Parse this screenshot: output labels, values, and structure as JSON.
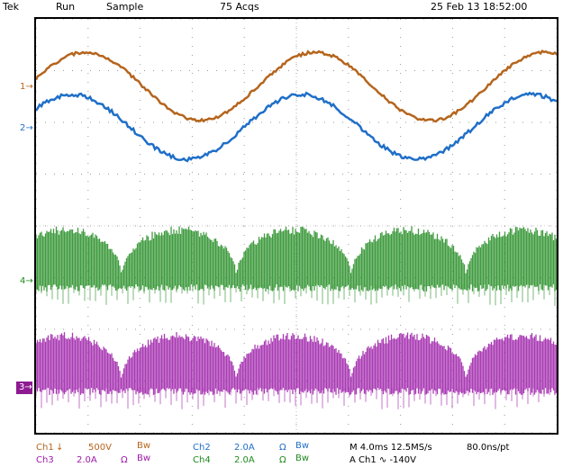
{
  "topbar": {
    "brand": "Tek",
    "run_state": "Run",
    "mode": "Sample",
    "acqs": "75 Acqs",
    "datetime": "25 Feb 13 18:52:00"
  },
  "markers": {
    "ch1": "1",
    "ch2": "2",
    "ch4": "4",
    "ch3": "3"
  },
  "readout": {
    "ch1_label": "Ch1",
    "ch1_scale": "500V",
    "ch1_bw": "Bw",
    "ch2_label": "Ch2",
    "ch2_scale": "2.0A",
    "ch2_ohm": "Ω",
    "ch2_bw": "Bw",
    "ch3_label": "Ch3",
    "ch3_scale": "2.0A",
    "ch3_ohm": "Ω",
    "ch3_bw": "Bw",
    "ch4_label": "Ch4",
    "ch4_scale": "2.0A",
    "ch4_ohm": "Ω",
    "ch4_bw": "Bw",
    "timebase": "M 4.0ms 12.5MS/s",
    "resolution": "80.0ns/pt",
    "trigger": "A  Ch1  ∿  -140V"
  },
  "colors": {
    "ch1": "#b5651d",
    "ch2": "#1f6fc8",
    "ch3": "#9c1aa8",
    "ch4": "#1f8a1f",
    "grid": "#9a9a9a",
    "trigger_marker": "#f08020"
  }
}
